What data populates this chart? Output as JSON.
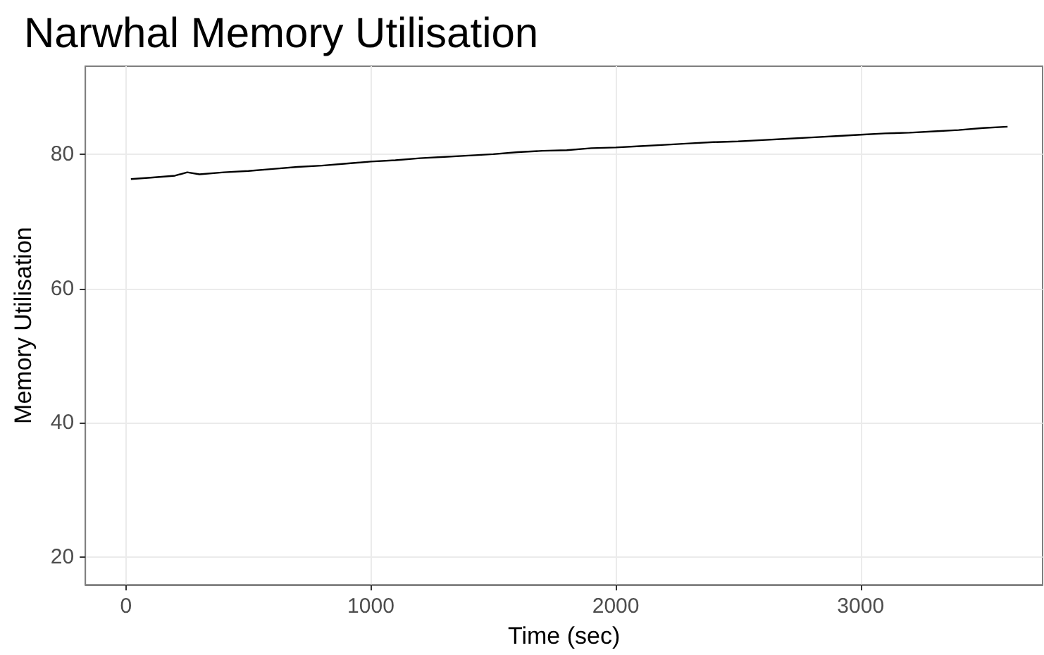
{
  "chart_data": {
    "type": "line",
    "title": "Narwhal Memory Utilisation",
    "xlabel": "Time (sec)",
    "ylabel": "Memory Utilisation",
    "x": [
      20,
      100,
      200,
      250,
      300,
      400,
      500,
      600,
      700,
      800,
      900,
      1000,
      1100,
      1200,
      1300,
      1400,
      1500,
      1600,
      1700,
      1800,
      1900,
      2000,
      2100,
      2200,
      2300,
      2400,
      2500,
      2600,
      2700,
      2800,
      2900,
      3000,
      3100,
      3200,
      3300,
      3400,
      3500,
      3600
    ],
    "series": [
      {
        "color": "#000000",
        "values": [
          76.3,
          76.5,
          76.8,
          77.3,
          77.0,
          77.3,
          77.5,
          77.8,
          78.1,
          78.3,
          78.6,
          78.9,
          79.1,
          79.4,
          79.6,
          79.8,
          80.0,
          80.3,
          80.5,
          80.6,
          80.9,
          81.0,
          81.2,
          81.4,
          81.6,
          81.8,
          81.9,
          82.1,
          82.3,
          82.5,
          82.7,
          82.9,
          83.1,
          83.2,
          83.4,
          83.6,
          83.9,
          84.1
        ]
      }
    ],
    "xlim": [
      -166,
      3743
    ],
    "ylim": [
      15.9,
      93.1
    ],
    "xticks": [
      0,
      1000,
      2000,
      3000
    ],
    "yticks": [
      20,
      40,
      60,
      80
    ],
    "grid": true,
    "marker": "none",
    "line_style": "solid"
  }
}
